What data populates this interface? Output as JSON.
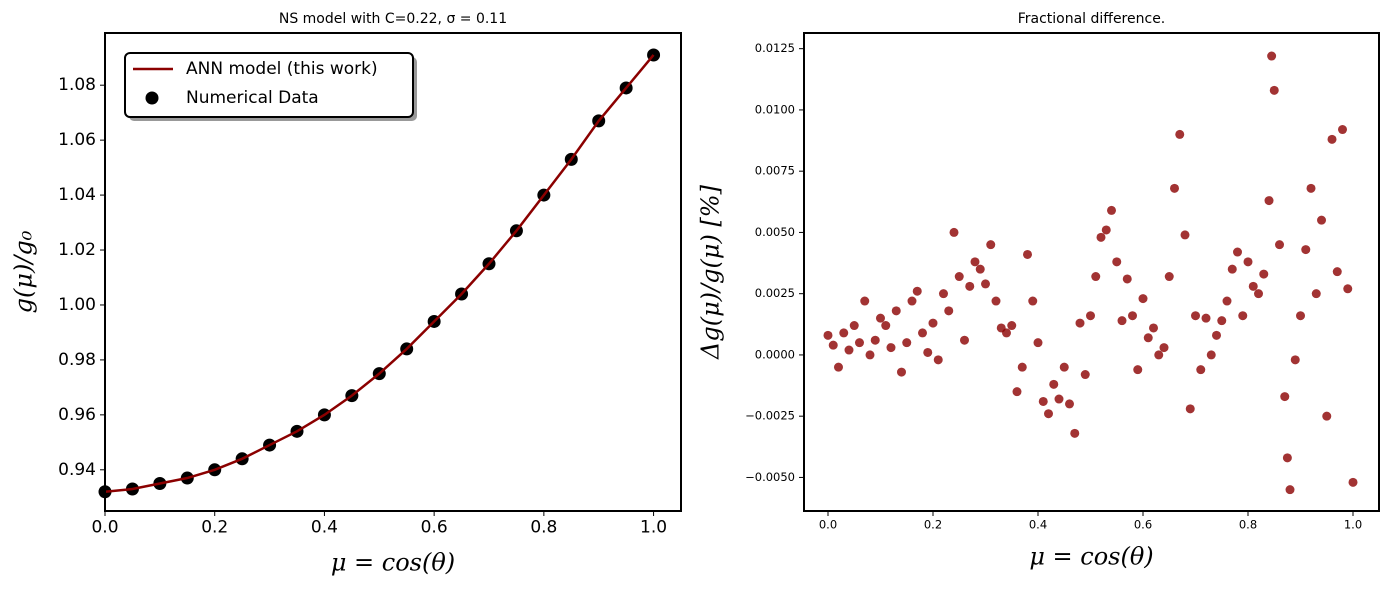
{
  "chart_data": [
    {
      "type": "line",
      "title": "NS model with C=0.22, σ = 0.11",
      "x_label": "μ = cos(θ)",
      "y_label": "g(μ)/g₀",
      "x": [
        0,
        0.05,
        0.1,
        0.15,
        0.2,
        0.25,
        0.3,
        0.35,
        0.4,
        0.45,
        0.5,
        0.55,
        0.6,
        0.65,
        0.7,
        0.75,
        0.8,
        0.85,
        0.9,
        0.95,
        1
      ],
      "series": [
        {
          "name": "ANN model (this work)",
          "type": "line",
          "color": "#8b0000",
          "values": [
            0.932,
            0.933,
            0.935,
            0.937,
            0.94,
            0.944,
            0.949,
            0.954,
            0.96,
            0.967,
            0.975,
            0.984,
            0.994,
            1.004,
            1.015,
            1.027,
            1.04,
            1.053,
            1.067,
            1.079,
            1.091
          ]
        },
        {
          "name": "Numerical Data",
          "type": "scatter",
          "color": "#000000",
          "values": [
            0.932,
            0.933,
            0.935,
            0.937,
            0.94,
            0.944,
            0.949,
            0.954,
            0.96,
            0.967,
            0.975,
            0.984,
            0.994,
            1.004,
            1.015,
            1.027,
            1.04,
            1.053,
            1.067,
            1.079,
            1.091
          ]
        }
      ],
      "xlim": [
        0,
        1.05
      ],
      "ylim": [
        0.925,
        1.099
      ],
      "xticks": [
        {
          "value": 0,
          "label": "0.0"
        },
        0.2,
        0.4,
        0.6,
        0.8,
        {
          "value": 1,
          "label": "1.0"
        }
      ],
      "yticks": [
        0.94,
        0.96,
        0.98,
        {
          "value": 1,
          "label": "1.00"
        },
        1.02,
        1.04,
        1.06,
        1.08
      ],
      "legend": "upper left"
    },
    {
      "type": "scatter",
      "title": "Fractional difference.",
      "x_label": "μ = cos(θ)",
      "y_label": "Δg(μ)/g(μ) [%]",
      "color": "#8b0000",
      "x": [
        0,
        0.01,
        0.02,
        0.03,
        0.04,
        0.05,
        0.06,
        0.07,
        0.08,
        0.09,
        0.1,
        0.11,
        0.12,
        0.13,
        0.14,
        0.15,
        0.16,
        0.17,
        0.18,
        0.19,
        0.2,
        0.21,
        0.22,
        0.23,
        0.24,
        0.25,
        0.26,
        0.27,
        0.28,
        0.29,
        0.3,
        0.31,
        0.32,
        0.33,
        0.34,
        0.35,
        0.36,
        0.37,
        0.38,
        0.39,
        0.4,
        0.41,
        0.42,
        0.43,
        0.44,
        0.45,
        0.46,
        0.47,
        0.48,
        0.49,
        0.5,
        0.51,
        0.52,
        0.53,
        0.54,
        0.55,
        0.56,
        0.57,
        0.58,
        0.59,
        0.6,
        0.61,
        0.62,
        0.63,
        0.64,
        0.65,
        0.66,
        0.67,
        0.68,
        0.69,
        0.7,
        0.71,
        0.72,
        0.73,
        0.74,
        0.75,
        0.76,
        0.77,
        0.78,
        0.79,
        0.8,
        0.81,
        0.82,
        0.83,
        0.84,
        0.845,
        0.85,
        0.86,
        0.87,
        0.875,
        0.88,
        0.89,
        0.9,
        0.91,
        0.92,
        0.93,
        0.94,
        0.95,
        0.96,
        0.97,
        0.98,
        0.99,
        1
      ],
      "values": [
        0.0008,
        0.0004,
        -0.0005,
        0.0009,
        0.0002,
        0.0012,
        0.0005,
        0.0022,
        0,
        0.0006,
        0.0015,
        0.0012,
        0.0003,
        0.0018,
        -0.0007,
        0.0005,
        0.0022,
        0.0026,
        0.0009,
        0.0001,
        0.0013,
        -0.0002,
        0.0025,
        0.0018,
        0.005,
        0.0032,
        0.0006,
        0.0028,
        0.0038,
        0.0035,
        0.0029,
        0.0045,
        0.0022,
        0.0011,
        0.0009,
        0.0012,
        -0.0015,
        -0.0005,
        0.0041,
        0.0022,
        0.0005,
        -0.0019,
        -0.0024,
        -0.0012,
        -0.0018,
        -0.0005,
        -0.002,
        -0.0032,
        0.0013,
        -0.0008,
        0.0016,
        0.0032,
        0.0048,
        0.0051,
        0.0059,
        0.0038,
        0.0014,
        0.0031,
        0.0016,
        -0.0006,
        0.0023,
        0.0007,
        0.0011,
        0,
        0.0003,
        0.0032,
        0.0068,
        0.009,
        0.0049,
        -0.0022,
        0.0016,
        -0.0006,
        0.0015,
        0,
        0.0008,
        0.0014,
        0.0022,
        0.0035,
        0.0042,
        0.0016,
        0.0038,
        0.0028,
        0.0025,
        0.0033,
        0.0063,
        0.0122,
        0.0108,
        0.0045,
        -0.0017,
        -0.0042,
        -0.0055,
        -0.0002,
        0.0016,
        0.0043,
        0.0068,
        0.0025,
        0.0055,
        -0.0025,
        0.0088,
        0.0034,
        0.0092,
        0.0027,
        -0.0052
      ],
      "xlim": [
        -0.0457,
        1.0495
      ],
      "ylim": [
        -0.00637,
        0.01314
      ],
      "xticks": [
        {
          "value": 0,
          "label": "0.0"
        },
        0.2,
        0.4,
        0.6,
        0.8,
        {
          "value": 1,
          "label": "1.0"
        }
      ],
      "yticks": [
        {
          "value": -0.005,
          "label": "−0.0050"
        },
        {
          "value": -0.0025,
          "label": "−0.0025"
        },
        {
          "value": 0,
          "label": "0.0000"
        },
        {
          "value": 0.0025,
          "label": "0.0025"
        },
        {
          "value": 0.005,
          "label": "0.0050"
        },
        {
          "value": 0.0075,
          "label": "0.0075"
        },
        {
          "value": 0.01,
          "label": "0.0100"
        },
        {
          "value": 0.0125,
          "label": "0.0125"
        }
      ]
    }
  ]
}
